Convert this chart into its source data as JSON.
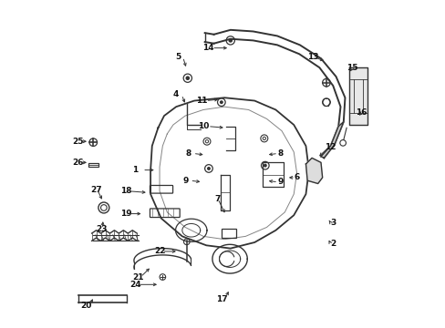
{
  "bg_color": "#ffffff",
  "line_color": "#333333",
  "label_color": "#111111",
  "label_data": [
    [
      1,
      0.205,
      0.48
    ],
    [
      2,
      0.86,
      0.235
    ],
    [
      3,
      0.86,
      0.305
    ],
    [
      4,
      0.34,
      0.73
    ],
    [
      5,
      0.345,
      0.855
    ],
    [
      6,
      0.74,
      0.455
    ],
    [
      7,
      0.476,
      0.385
    ],
    [
      8,
      0.382,
      0.535
    ],
    [
      8,
      0.685,
      0.535
    ],
    [
      9,
      0.372,
      0.445
    ],
    [
      9,
      0.685,
      0.44
    ],
    [
      10,
      0.432,
      0.625
    ],
    [
      11,
      0.425,
      0.71
    ],
    [
      12,
      0.852,
      0.555
    ],
    [
      13,
      0.795,
      0.855
    ],
    [
      14,
      0.445,
      0.885
    ],
    [
      15,
      0.925,
      0.82
    ],
    [
      16,
      0.955,
      0.67
    ],
    [
      17,
      0.492,
      0.05
    ],
    [
      18,
      0.175,
      0.41
    ],
    [
      19,
      0.175,
      0.335
    ],
    [
      20,
      0.04,
      0.03
    ],
    [
      21,
      0.215,
      0.125
    ],
    [
      22,
      0.285,
      0.21
    ],
    [
      23,
      0.093,
      0.285
    ],
    [
      24,
      0.205,
      0.1
    ],
    [
      25,
      0.015,
      0.575
    ],
    [
      26,
      0.015,
      0.505
    ],
    [
      27,
      0.075,
      0.415
    ]
  ],
  "pointer_data": [
    [
      0.228,
      0.48,
      0.275,
      0.48
    ],
    [
      0.852,
      0.235,
      0.842,
      0.255
    ],
    [
      0.852,
      0.305,
      0.842,
      0.32
    ],
    [
      0.358,
      0.73,
      0.372,
      0.695
    ],
    [
      0.362,
      0.855,
      0.375,
      0.815
    ],
    [
      0.735,
      0.455,
      0.705,
      0.455
    ],
    [
      0.478,
      0.385,
      0.505,
      0.33
    ],
    [
      0.396,
      0.535,
      0.438,
      0.53
    ],
    [
      0.678,
      0.535,
      0.638,
      0.53
    ],
    [
      0.386,
      0.445,
      0.428,
      0.44
    ],
    [
      0.678,
      0.44,
      0.638,
      0.445
    ],
    [
      0.445,
      0.625,
      0.505,
      0.62
    ],
    [
      0.438,
      0.71,
      0.488,
      0.715
    ],
    [
      0.845,
      0.555,
      0.808,
      0.52
    ],
    [
      0.795,
      0.855,
      0.838,
      0.84
    ],
    [
      0.458,
      0.885,
      0.518,
      0.885
    ],
    [
      0.925,
      0.82,
      0.91,
      0.8
    ],
    [
      0.955,
      0.67,
      0.942,
      0.655
    ],
    [
      0.5,
      0.05,
      0.518,
      0.085
    ],
    [
      0.182,
      0.41,
      0.248,
      0.405
    ],
    [
      0.182,
      0.335,
      0.232,
      0.335
    ],
    [
      0.052,
      0.03,
      0.068,
      0.06
    ],
    [
      0.222,
      0.125,
      0.258,
      0.16
    ],
    [
      0.292,
      0.21,
      0.348,
      0.21
    ],
    [
      0.095,
      0.285,
      0.098,
      0.318
    ],
    [
      0.212,
      0.1,
      0.285,
      0.1
    ],
    [
      0.018,
      0.575,
      0.052,
      0.575
    ],
    [
      0.018,
      0.505,
      0.052,
      0.505
    ],
    [
      0.078,
      0.415,
      0.098,
      0.375
    ]
  ]
}
